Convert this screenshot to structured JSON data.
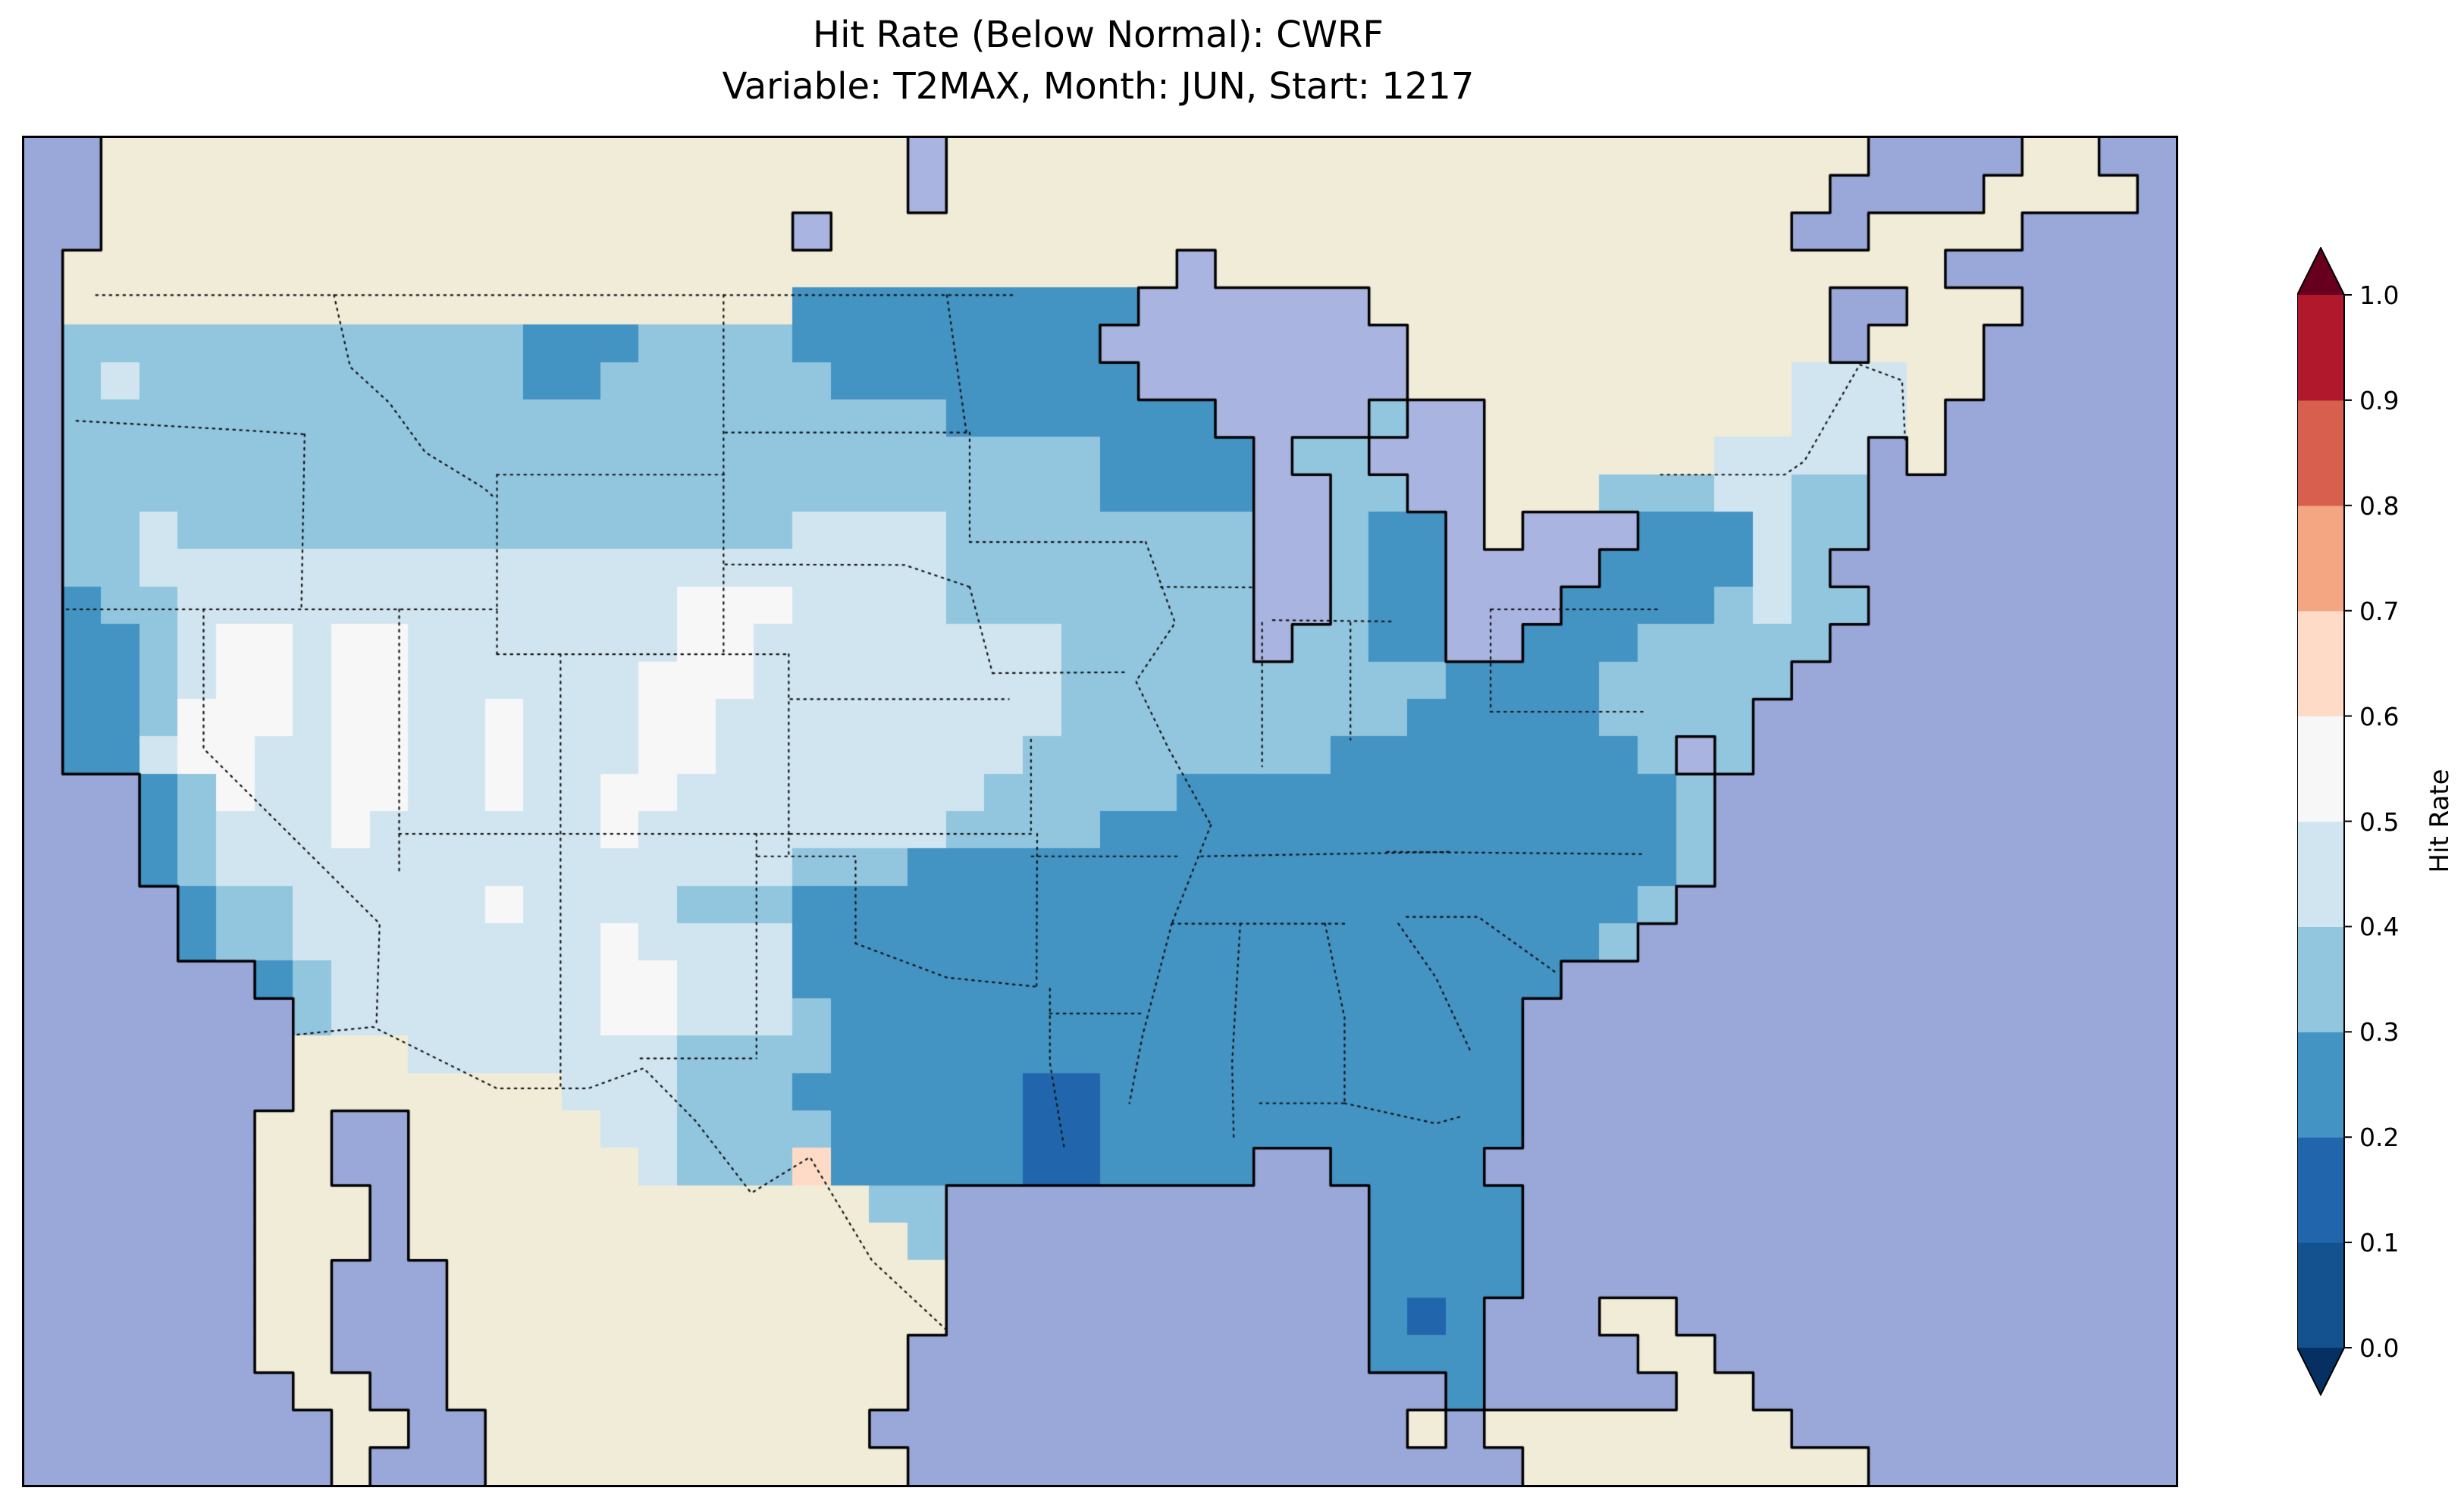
{
  "figure": {
    "title_line1": "Hit Rate (Below Normal): CWRF",
    "title_line2": "Variable: T2MAX, Month: JUN, Start: 1217"
  },
  "chart_data": {
    "type": "heatmap",
    "subtype": "geographic-gridded-choropleth",
    "title": "Hit Rate (Below Normal): CWRF",
    "subtitle": "Variable: T2MAX, Month: JUN, Start: 1217",
    "model": "CWRF",
    "statistic": "Hit Rate",
    "category": "Below Normal",
    "variable": "T2MAX",
    "month": "JUN",
    "start": "1217",
    "colorbar": {
      "label": "Hit Rate",
      "orientation": "vertical",
      "tick_labels": [
        "0.0",
        "0.1",
        "0.2",
        "0.3",
        "0.4",
        "0.5",
        "0.6",
        "0.7",
        "0.8",
        "0.9",
        "1.0"
      ],
      "segment_colors_low_to_high": [
        "#14518f",
        "#2166ac",
        "#4393c3",
        "#92c5de",
        "#d1e5f0",
        "#f7f7f7",
        "#fddbc7",
        "#f4a582",
        "#d6604d",
        "#b2182b"
      ],
      "under_arrow_color": "#053061",
      "over_arrow_color": "#67001f",
      "outline_color": "#000000"
    },
    "map": {
      "extent": {
        "lon_min": -125.5,
        "lon_max": -59.5,
        "lat_min": 22.5,
        "lat_max": 52.5
      },
      "palette": {
        "~": "#9aa7d9",
        "C": "#f0ecd8",
        "w": "#a9b4e0",
        "a": "#2166ac",
        "b": "#4393c3",
        "c": "#92c5de",
        "d": "#d1e5f0",
        "e": "#f7f7f7",
        "f": "#fddbc7"
      },
      "cell_meaning": {
        "~": "ocean",
        "C": "land outside domain (no data)",
        "w": "lake",
        "a": "hit rate 0.1-0.2",
        "b": "hit rate 0.2-0.3",
        "c": "hit rate 0.3-0.4",
        "d": "hit rate 0.4-0.5",
        "e": "hit rate 0.5-0.6",
        "f": "hit rate 0.6-0.7"
      },
      "coastline_color": "#000000",
      "border_style": "dotted",
      "grid_rle_rows": [
        "2~21C1w24C4~2C2~",
        "2~21C1w23C4~4C1~",
        "2~18C1w25C2~4C4~",
        "1~29C1w19C6~",
        "1~19C9b6w12C2~3C4~",
        "1~12c3b4c8b8w11C1~3C5~",
        "1~1c1d10c2b6c8b7w10C3d2C5~",
        "1~23c7b4w1c2w8C3d1C6~",
        "1~27c4b1w2c3w6C4d1~1C6~",
        "1~27c4b2w2c2w3C3c2d2c8~",
        "1~2c1d16c4d8c2w1c2b1w1C3w3b1d2c8~",
        "1~2c21d8c2w1c2b4w4b1d1c9~",
        "1~1b2c13d3e4d8c2w1c2b3w4b1c1d2c8~",
        "1~2b1c1d2e1d2e7d2e8d5c1w2c2b2w3b5c9~",
        "1~2b1c1d2e1d2e6d3e8d10c4b5c10~",
        "1~2b1c3e1d2e2d1e3d2e9d9c5b4c11~",
        "1~2b1d2e2d2e2d1e3d2e8d8c8b1c1w1c11~",
        "3~1b1c1e2d2e2d1e2d2e8d5c13b1c12~",
        "3~1b1c3d1e6d1e8d4c15b1c12~",
        "3~1b1c15d3c20b1c12~",
        "4~1b2c5d1e4d3c22b1c13~",
        "4~1b2c8d1e4d21b1c14~",
        "6~1b1c7d2e3d20b16~",
        "7~1c7d2e3d1c18b17~",
        "7~3C7d4c18b17~",
        "7~7C3d3c6b2a11b17~",
        "6~2C2~5C2d4c5b2a11b17~",
        "6~2C2~6C1d3c1f5b2a4b2~4b18~",
        "6~3C1~12C2c11~4b17~",
        "6~3C1~13C1c11~4b17~",
        "6~2C3~13C11~4b17~",
        "6~2C3~13C11~1b1a1b3~2C13~",
        "6~2C3~12C12~3b4~2C12~",
        "7~2C2~12C14~1b5~2C11~",
        "8~2C2~10C14~1C1~8C10~",
        "8~1C3~11C16~9C8~"
      ],
      "borders": [
        [
          [
            -123.3,
            49
          ],
          [
            -95.15,
            49
          ]
        ],
        [
          [
            -75.3,
            45
          ],
          [
            -71.5,
            45
          ],
          [
            -70.9,
            45.3
          ],
          [
            -69.2,
            47.45
          ],
          [
            -67.9,
            47.1
          ],
          [
            -67.8,
            45.7
          ]
        ],
        [
          [
            -117.12,
            32.53
          ],
          [
            -114.8,
            32.7
          ],
          [
            -111,
            31.33
          ],
          [
            -108.2,
            31.33
          ],
          [
            -106.5,
            31.78
          ],
          [
            -104.9,
            30.6
          ],
          [
            -103.2,
            29
          ],
          [
            -101.4,
            29.8
          ],
          [
            -99.5,
            27.5
          ],
          [
            -97.14,
            25.9
          ]
        ],
        [
          [
            -123.9,
            46.2
          ],
          [
            -119,
            46
          ],
          [
            -116.9,
            45.9
          ]
        ],
        [
          [
            -116.9,
            45.9
          ],
          [
            -117,
            42
          ]
        ],
        [
          [
            -124.2,
            42
          ],
          [
            -111,
            42
          ]
        ],
        [
          [
            -120,
            42
          ],
          [
            -120,
            38.9
          ],
          [
            -114.6,
            35
          ],
          [
            -114.7,
            32.7
          ]
        ],
        [
          [
            -114,
            42
          ],
          [
            -114,
            36.1
          ]
        ],
        [
          [
            -114,
            37
          ],
          [
            -102,
            37
          ]
        ],
        [
          [
            -109.05,
            41
          ],
          [
            -109.05,
            31.33
          ]
        ],
        [
          [
            -111,
            41
          ],
          [
            -102,
            41
          ]
        ],
        [
          [
            -111,
            45
          ],
          [
            -111,
            41
          ]
        ],
        [
          [
            -111,
            45
          ],
          [
            -104,
            45
          ]
        ],
        [
          [
            -116,
            49
          ],
          [
            -115.5,
            47.4
          ],
          [
            -114.3,
            46.6
          ],
          [
            -113.2,
            45.5
          ],
          [
            -111.4,
            44.7
          ],
          [
            -111.05,
            44.47
          ]
        ],
        [
          [
            -104.05,
            49
          ],
          [
            -104.05,
            41
          ]
        ],
        [
          [
            -102.05,
            41
          ],
          [
            -102.05,
            36.5
          ]
        ],
        [
          [
            -104,
            45.94
          ],
          [
            -96.6,
            45.94
          ]
        ],
        [
          [
            -104,
            43
          ],
          [
            -98.5,
            42.99
          ],
          [
            -96.5,
            42.5
          ]
        ],
        [
          [
            -96.5,
            42.5
          ],
          [
            -95.8,
            40.58
          ]
        ],
        [
          [
            -102,
            40
          ],
          [
            -95.3,
            40
          ]
        ],
        [
          [
            -102,
            37
          ],
          [
            -94.62,
            37
          ]
        ],
        [
          [
            -103,
            36.5
          ],
          [
            -100,
            36.5
          ],
          [
            -100,
            34.56
          ]
        ],
        [
          [
            -100,
            34.56
          ],
          [
            -97.2,
            33.8
          ],
          [
            -94.5,
            33.6
          ]
        ],
        [
          [
            -103.04,
            37
          ],
          [
            -103.04,
            32
          ]
        ],
        [
          [
            -106.6,
            32
          ],
          [
            -103.04,
            32
          ]
        ],
        [
          [
            -97.2,
            49
          ],
          [
            -96.6,
            45.94
          ]
        ],
        [
          [
            -96.5,
            45.94
          ],
          [
            -96.5,
            43.5
          ]
        ],
        [
          [
            -96.5,
            43.5
          ],
          [
            -91.2,
            43.5
          ]
        ],
        [
          [
            -95.8,
            40.58
          ],
          [
            -91.7,
            40.6
          ]
        ],
        [
          [
            -91.1,
            43.5
          ],
          [
            -90.2,
            41.7
          ],
          [
            -91.4,
            40.4
          ],
          [
            -90.4,
            38.9
          ],
          [
            -89.1,
            37.2
          ]
        ],
        [
          [
            -89.1,
            37.2
          ],
          [
            -90.3,
            35
          ]
        ],
        [
          [
            -90.3,
            35
          ],
          [
            -91.2,
            32.5
          ],
          [
            -91.6,
            31
          ]
        ],
        [
          [
            -94.04,
            33
          ],
          [
            -91.2,
            33
          ]
        ],
        [
          [
            -94.04,
            33.55
          ],
          [
            -94.04,
            31.9
          ],
          [
            -93.6,
            30
          ]
        ],
        [
          [
            -94.62,
            39.1
          ],
          [
            -94.62,
            37
          ]
        ],
        [
          [
            -94.43,
            37
          ],
          [
            -94.45,
            33.55
          ]
        ],
        [
          [
            -94.6,
            36.5
          ],
          [
            -90.1,
            36.5
          ]
        ],
        [
          [
            -90.3,
            35
          ],
          [
            -85,
            35
          ]
        ],
        [
          [
            -89.4,
            36.5
          ],
          [
            -81.7,
            36.6
          ]
        ],
        [
          [
            -83.7,
            36.6
          ],
          [
            -75.9,
            36.55
          ]
        ],
        [
          [
            -85.6,
            35
          ],
          [
            -85,
            32.9
          ],
          [
            -85,
            31
          ]
        ],
        [
          [
            -88.2,
            35
          ],
          [
            -88.45,
            31.9
          ],
          [
            -88.4,
            30.2
          ]
        ],
        [
          [
            -87.6,
            31
          ],
          [
            -85,
            31
          ]
        ],
        [
          [
            -85,
            31
          ],
          [
            -82.2,
            30.55
          ],
          [
            -81.45,
            30.7
          ]
        ],
        [
          [
            -83.35,
            35
          ],
          [
            -82.2,
            33.8
          ],
          [
            -81.1,
            32.1
          ]
        ],
        [
          [
            -83.1,
            35.15
          ],
          [
            -80.9,
            35.15
          ],
          [
            -78.5,
            33.9
          ]
        ],
        [
          [
            -84.82,
            41.7
          ],
          [
            -84.82,
            39.1
          ]
        ],
        [
          [
            -87.53,
            41.7
          ],
          [
            -87.53,
            38.5
          ]
        ],
        [
          [
            -90.64,
            42.5
          ],
          [
            -87.8,
            42.49
          ]
        ],
        [
          [
            -87.2,
            41.76
          ],
          [
            -83.45,
            41.73
          ]
        ],
        [
          [
            -80.52,
            42
          ],
          [
            -80.52,
            39.72
          ]
        ],
        [
          [
            -80.52,
            39.72
          ],
          [
            -75.8,
            39.72
          ]
        ],
        [
          [
            -80.5,
            42
          ],
          [
            -75.35,
            42
          ]
        ]
      ]
    }
  }
}
